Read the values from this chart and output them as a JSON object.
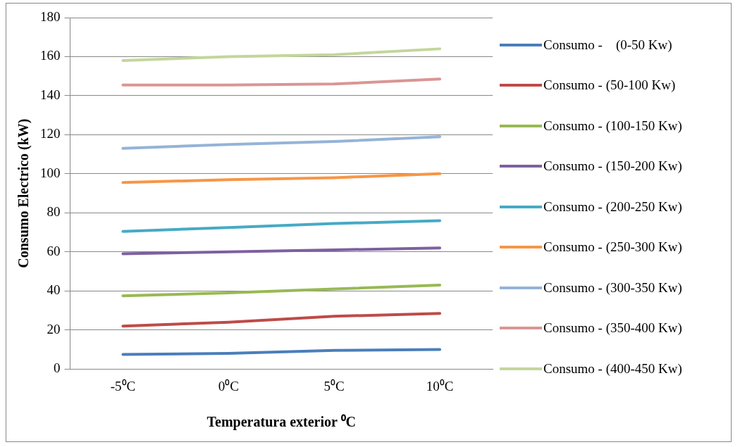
{
  "chart_data": {
    "type": "line",
    "xlabel": "Temperatura exterior ⁰C",
    "ylabel": "Consumo Electrico (kW)",
    "categories": [
      "-5⁰C",
      "0⁰C",
      "5⁰C",
      "10⁰C"
    ],
    "ylim": [
      0,
      180
    ],
    "yticks": [
      0,
      20,
      40,
      60,
      80,
      100,
      120,
      140,
      160,
      180
    ],
    "grid": "y",
    "legend": "right",
    "marker": "none",
    "line_style": "solid",
    "series": [
      {
        "name": "Consumo -    (0-50 Kw)",
        "color": "#4a7ebb",
        "values": [
          7.5,
          8,
          9.5,
          10
        ]
      },
      {
        "name": "Consumo - (50-100 Kw)",
        "color": "#be4b48",
        "values": [
          22,
          24,
          27,
          28.5
        ]
      },
      {
        "name": "Consumo - (100-150 Kw)",
        "color": "#98b954",
        "values": [
          37.5,
          39,
          41,
          43
        ]
      },
      {
        "name": "Consumo - (150-200 Kw)",
        "color": "#7d60a0",
        "values": [
          59,
          60,
          61,
          62
        ]
      },
      {
        "name": "Consumo - (200-250 Kw)",
        "color": "#46aac5",
        "values": [
          70.5,
          72.5,
          74.5,
          76
        ]
      },
      {
        "name": "Consumo - (250-300 Kw)",
        "color": "#f79646",
        "values": [
          95.5,
          97,
          98,
          100
        ]
      },
      {
        "name": "Consumo - (300-350 Kw)",
        "color": "#95b3d7",
        "values": [
          113,
          115,
          116.5,
          119
        ]
      },
      {
        "name": "Consumo - (350-400 Kw)",
        "color": "#d99694",
        "values": [
          145.5,
          145.5,
          146,
          148.5
        ]
      },
      {
        "name": "Consumo - (400-450 Kw)",
        "color": "#c3d69b",
        "values": [
          158,
          160,
          161,
          164
        ]
      }
    ]
  }
}
